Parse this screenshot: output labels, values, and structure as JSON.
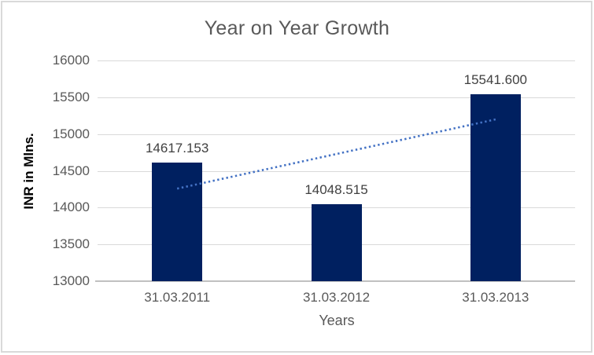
{
  "chart_data": {
    "type": "bar",
    "title": "Year on Year Growth",
    "xlabel": "Years",
    "ylabel": "INR in Mlns.",
    "categories": [
      "31.03.2011",
      "31.03.2012",
      "31.03.2013"
    ],
    "values": [
      14617.153,
      14048.515,
      15541.6
    ],
    "value_labels": [
      "14617.153",
      "14048.515",
      "15541.600"
    ],
    "ylim": [
      13000,
      16000
    ],
    "ytick_step": 500,
    "yticks": [
      16000,
      15500,
      15000,
      14500,
      14000,
      13500,
      13000
    ],
    "grid": "horizontal",
    "legend": "none",
    "trendline": {
      "type": "linear",
      "style": "dotted",
      "color": "#4472C4",
      "endpoint_values": [
        14258,
        15199
      ]
    },
    "colors": {
      "bar": "#002060",
      "title_text": "#595959",
      "tick_text": "#595959",
      "data_label_text": "#404040",
      "gridline": "#D9D9D9",
      "axis_line": "#C0C0C0",
      "frame_border": "#D9D9D9"
    }
  }
}
